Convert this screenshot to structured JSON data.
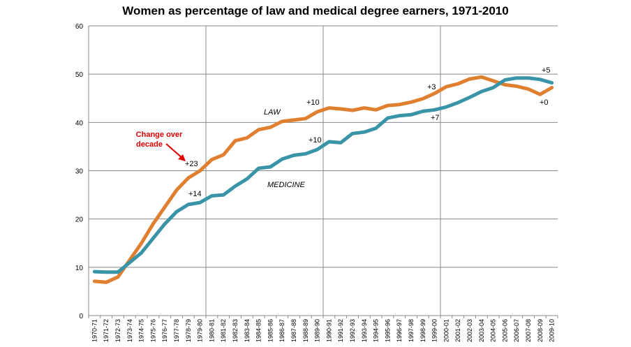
{
  "chart_data": {
    "type": "line",
    "title": "Women as percentage of law and medical degree earners, 1971-2010",
    "xlabel": "",
    "ylabel": "",
    "ylim": [
      0,
      60
    ],
    "yticks": [
      "0",
      "10",
      "20",
      "30",
      "40",
      "50",
      "60"
    ],
    "grid": "vertical lines at 1980-81, 1990-91, 2000-01",
    "categories": [
      "1970-71",
      "1971-72",
      "1972-73",
      "1973-74",
      "1974-75",
      "1975-76",
      "1976-77",
      "1977-78",
      "1978-79",
      "1979-80",
      "1980-81",
      "1981-82",
      "1982-83",
      "1983-84",
      "1984-85",
      "1985-86",
      "1986-87",
      "1987-88",
      "1988-89",
      "1989-90",
      "1990-91",
      "1991-92",
      "1992-93",
      "1993-94",
      "1994-95",
      "1995-96",
      "1996-97",
      "1997-98",
      "1998-99",
      "1999-00",
      "2000-01",
      "2001-02",
      "2002-03",
      "2003-04",
      "2004-05",
      "2005-06",
      "2006-07",
      "2007-08",
      "2008-09",
      "2009-10"
    ],
    "series": [
      {
        "name": "LAW",
        "color": "#e07f2f",
        "values": [
          7.1,
          6.9,
          8.0,
          11.5,
          15.0,
          19.0,
          22.5,
          26.0,
          28.5,
          30.0,
          32.3,
          33.3,
          36.2,
          36.8,
          38.5,
          39.0,
          40.2,
          40.5,
          40.8,
          42.2,
          43.0,
          42.8,
          42.5,
          43.0,
          42.6,
          43.5,
          43.7,
          44.2,
          44.9,
          46.0,
          47.4,
          48.0,
          49.0,
          49.4,
          48.6,
          47.8,
          47.5,
          46.9,
          45.8,
          47.2
        ]
      },
      {
        "name": "MEDICINE",
        "color": "#3a94a8",
        "values": [
          9.1,
          9.0,
          9.0,
          11.0,
          13.0,
          16.0,
          19.0,
          21.5,
          23.0,
          23.4,
          24.8,
          25.0,
          26.8,
          28.3,
          30.5,
          30.8,
          32.4,
          33.2,
          33.5,
          34.4,
          36.0,
          35.8,
          37.7,
          38.0,
          38.8,
          40.9,
          41.4,
          41.6,
          42.3,
          42.6,
          43.2,
          44.1,
          45.2,
          46.4,
          47.2,
          48.8,
          49.2,
          49.2,
          48.9,
          48.2
        ]
      }
    ],
    "annotations": {
      "law_label": "LAW",
      "medicine_label": "MEDICINE",
      "change_note_line1": "Change over",
      "change_note_line2": "decade",
      "law_1980": "+23",
      "med_1980": "+14",
      "law_1990": "+10",
      "med_1990": "+10",
      "law_2000": "+3",
      "med_2000": "+7",
      "law_2010": "+0",
      "med_2010": "+5"
    }
  }
}
